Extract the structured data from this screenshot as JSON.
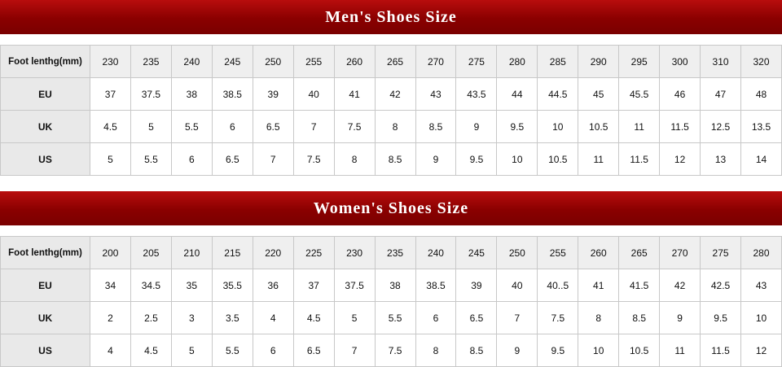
{
  "tables": [
    {
      "title": "Men's Shoes Size",
      "header": {
        "label": "Foot lenthg(mm)",
        "values": [
          "230",
          "235",
          "240",
          "245",
          "250",
          "255",
          "260",
          "265",
          "270",
          "275",
          "280",
          "285",
          "290",
          "295",
          "300",
          "310",
          "320"
        ]
      },
      "rows": [
        {
          "label": "EU",
          "values": [
            "37",
            "37.5",
            "38",
            "38.5",
            "39",
            "40",
            "41",
            "42",
            "43",
            "43.5",
            "44",
            "44.5",
            "45",
            "45.5",
            "46",
            "47",
            "48"
          ]
        },
        {
          "label": "UK",
          "values": [
            "4.5",
            "5",
            "5.5",
            "6",
            "6.5",
            "7",
            "7.5",
            "8",
            "8.5",
            "9",
            "9.5",
            "10",
            "10.5",
            "11",
            "11.5",
            "12.5",
            "13.5"
          ]
        },
        {
          "label": "US",
          "values": [
            "5",
            "5.5",
            "6",
            "6.5",
            "7",
            "7.5",
            "8",
            "8.5",
            "9",
            "9.5",
            "10",
            "10.5",
            "11",
            "11.5",
            "12",
            "13",
            "14"
          ]
        }
      ]
    },
    {
      "title": "Women's Shoes Size",
      "header": {
        "label": "Foot lenthg(mm)",
        "values": [
          "200",
          "205",
          "210",
          "215",
          "220",
          "225",
          "230",
          "235",
          "240",
          "245",
          "250",
          "255",
          "260",
          "265",
          "270",
          "275",
          "280"
        ]
      },
      "rows": [
        {
          "label": "EU",
          "values": [
            "34",
            "34.5",
            "35",
            "35.5",
            "36",
            "37",
            "37.5",
            "38",
            "38.5",
            "39",
            "40",
            "40..5",
            "41",
            "41.5",
            "42",
            "42.5",
            "43"
          ]
        },
        {
          "label": "UK",
          "values": [
            "2",
            "2.5",
            "3",
            "3.5",
            "4",
            "4.5",
            "5",
            "5.5",
            "6",
            "6.5",
            "7",
            "7.5",
            "8",
            "8.5",
            "9",
            "9.5",
            "10"
          ]
        },
        {
          "label": "US",
          "values": [
            "4",
            "4.5",
            "5",
            "5.5",
            "6",
            "6.5",
            "7",
            "7.5",
            "8",
            "8.5",
            "9",
            "9.5",
            "10",
            "10.5",
            "11",
            "11.5",
            "12"
          ]
        }
      ]
    }
  ]
}
